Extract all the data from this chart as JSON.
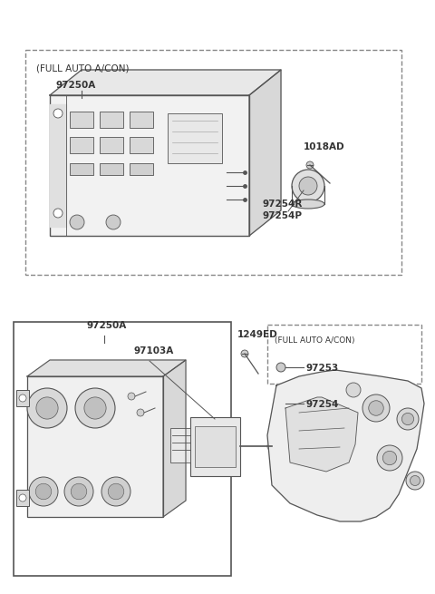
{
  "bg_color": "#ffffff",
  "line_color": "#555555",
  "text_color": "#333333",
  "dashed_box_color": "#888888",
  "fig_width": 4.8,
  "fig_height": 6.55,
  "dpi": 100,
  "top_label": "(FULL AUTO A/CON)",
  "top_97250A": "97250A",
  "top_1018AD": "1018AD",
  "top_97254R": "97254R",
  "top_97254P": "97254P",
  "bot_97250A": "97250A",
  "bot_97103A": "97103A",
  "bot_1249ED": "1249ED",
  "bot_97253": "97253",
  "bot_97254": "97254",
  "bot_full_auto": "(FULL AUTO A/CON)"
}
